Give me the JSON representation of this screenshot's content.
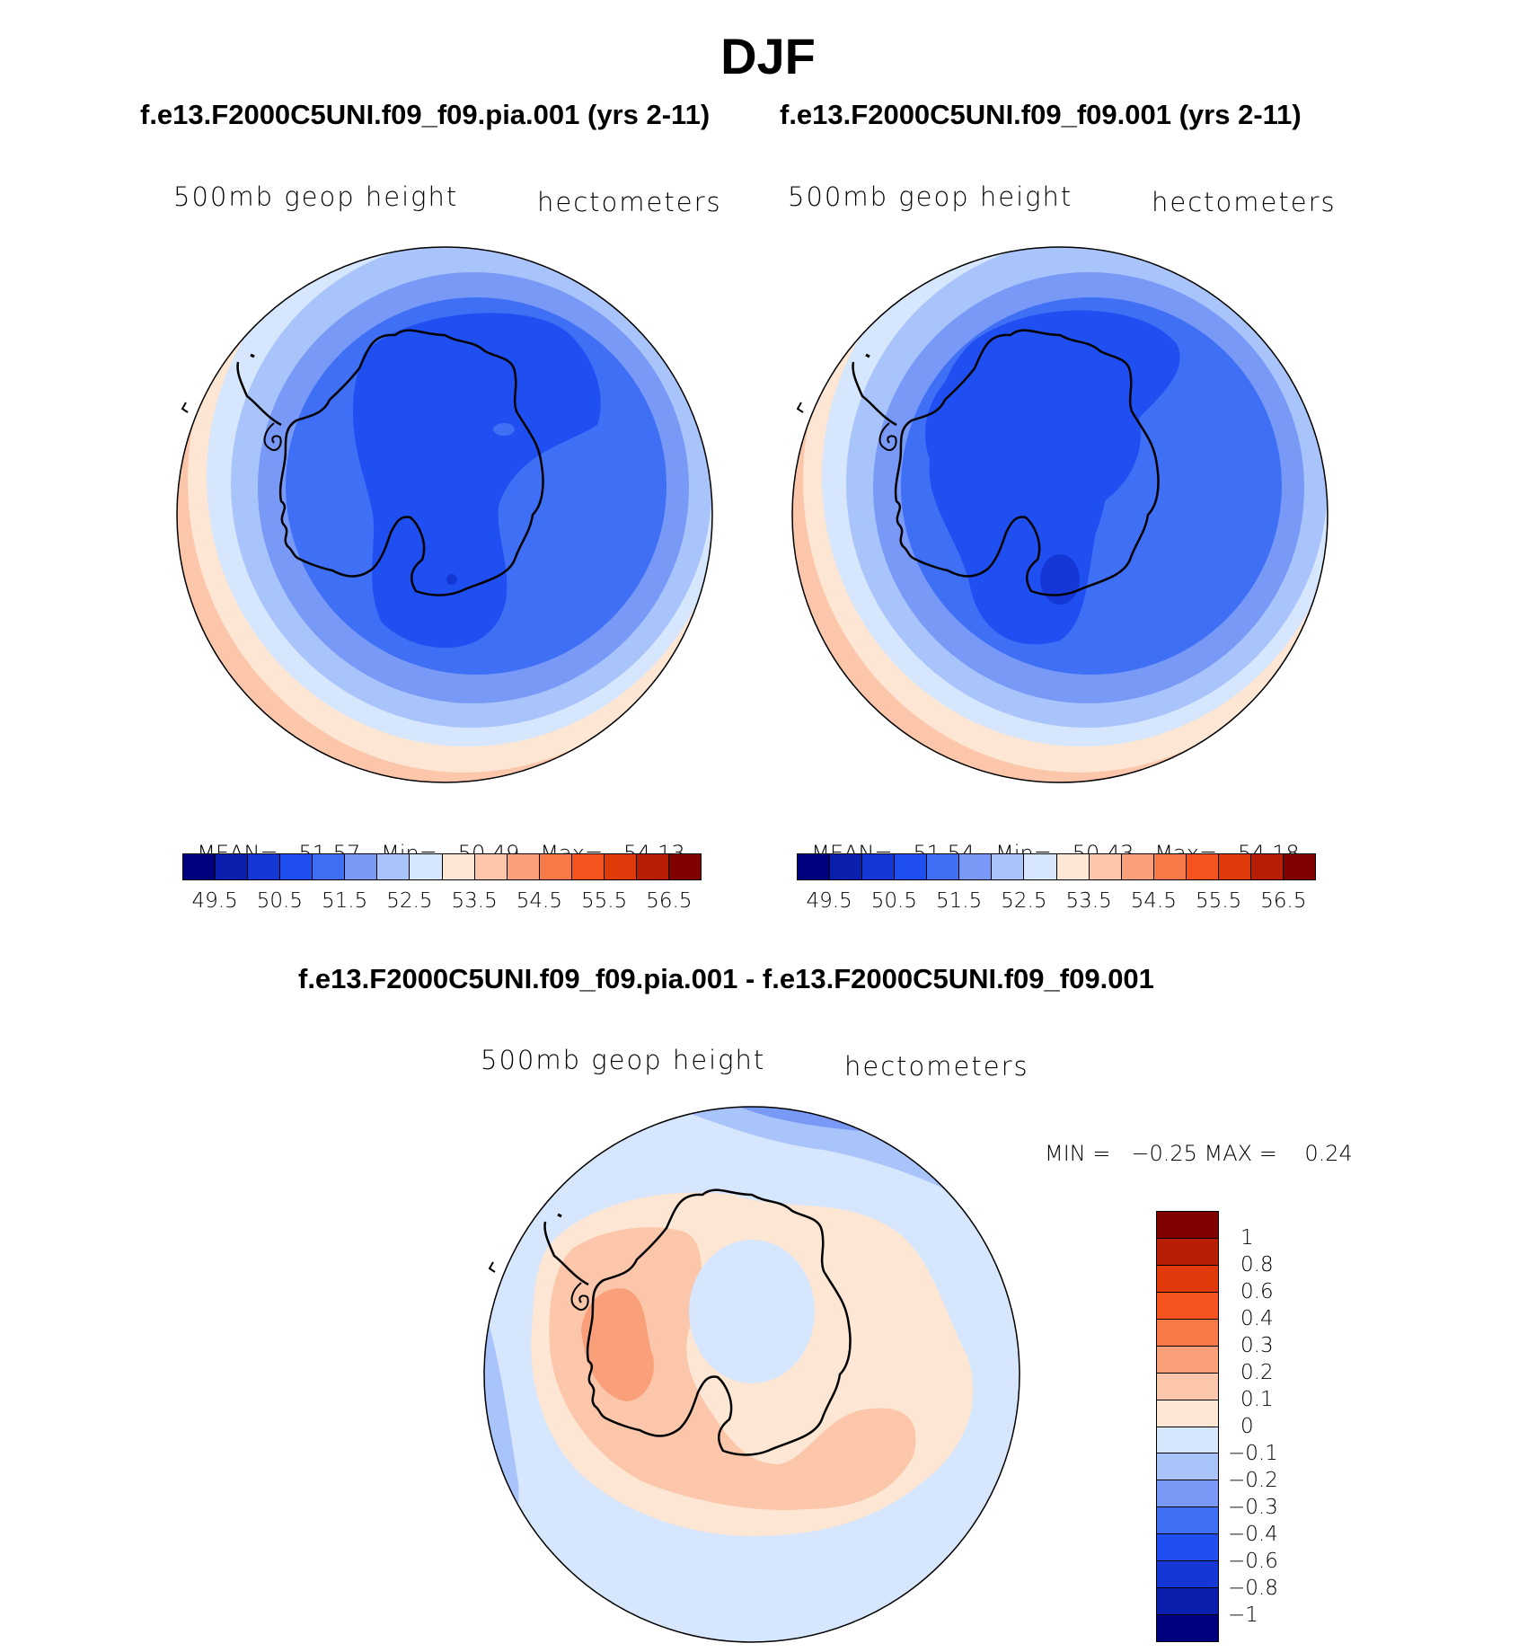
{
  "title": "DJF",
  "panels": [
    {
      "case": "f.e13.F2000C5UNI.f09_f09.pia.001 (yrs 2-11)",
      "variable": "500mb geop height",
      "units": "hectometers",
      "stats": {
        "mean_label": "MEAN=",
        "mean": "51.57",
        "min_label": "Min=",
        "min": "50.49",
        "max_label": "Max=",
        "max": "54.13"
      }
    },
    {
      "case": "f.e13.F2000C5UNI.f09_f09.001 (yrs 2-11)",
      "variable": "500mb geop height",
      "units": "hectometers",
      "stats": {
        "mean_label": "MEAN=",
        "mean": "51.54",
        "min_label": "Min=",
        "min": "50.43",
        "max_label": "Max=",
        "max": "54.18"
      }
    }
  ],
  "diff": {
    "case": "f.e13.F2000C5UNI.f09_f09.pia.001 - f.e13.F2000C5UNI.f09_f09.001",
    "variable": "500mb geop height",
    "units": "hectometers",
    "stats": "MIN =   −0.25 MAX =    0.24"
  },
  "colorbar_main": {
    "colors": [
      "#00007f",
      "#0a1fae",
      "#1437d6",
      "#1f4ff0",
      "#3e6ff5",
      "#7899f6",
      "#a9c3fb",
      "#d5e6fd",
      "#fde6d4",
      "#fbc6aa",
      "#f9a07a",
      "#f77a48",
      "#f5541e",
      "#e03a0a",
      "#b81e05",
      "#800000"
    ],
    "labels": [
      "49.5",
      "50.5",
      "51.5",
      "52.5",
      "53.5",
      "54.5",
      "55.5",
      "56.5"
    ]
  },
  "colorbar_diff": {
    "colors": [
      "#800000",
      "#b81e05",
      "#e03a0a",
      "#f5541e",
      "#f77a48",
      "#f9a07a",
      "#fbc6aa",
      "#fde6d4",
      "#d5e6fd",
      "#a9c3fb",
      "#7899f6",
      "#3e6ff5",
      "#1f4ff0",
      "#1437d6",
      "#0a1fae",
      "#00007f"
    ],
    "labels": [
      "1",
      "0.8",
      "0.6",
      "0.4",
      "0.3",
      "0.2",
      "0.1",
      "0",
      "−0.1",
      "−0.2",
      "−0.3",
      "−0.4",
      "−0.6",
      "−0.8",
      "−1"
    ]
  }
}
